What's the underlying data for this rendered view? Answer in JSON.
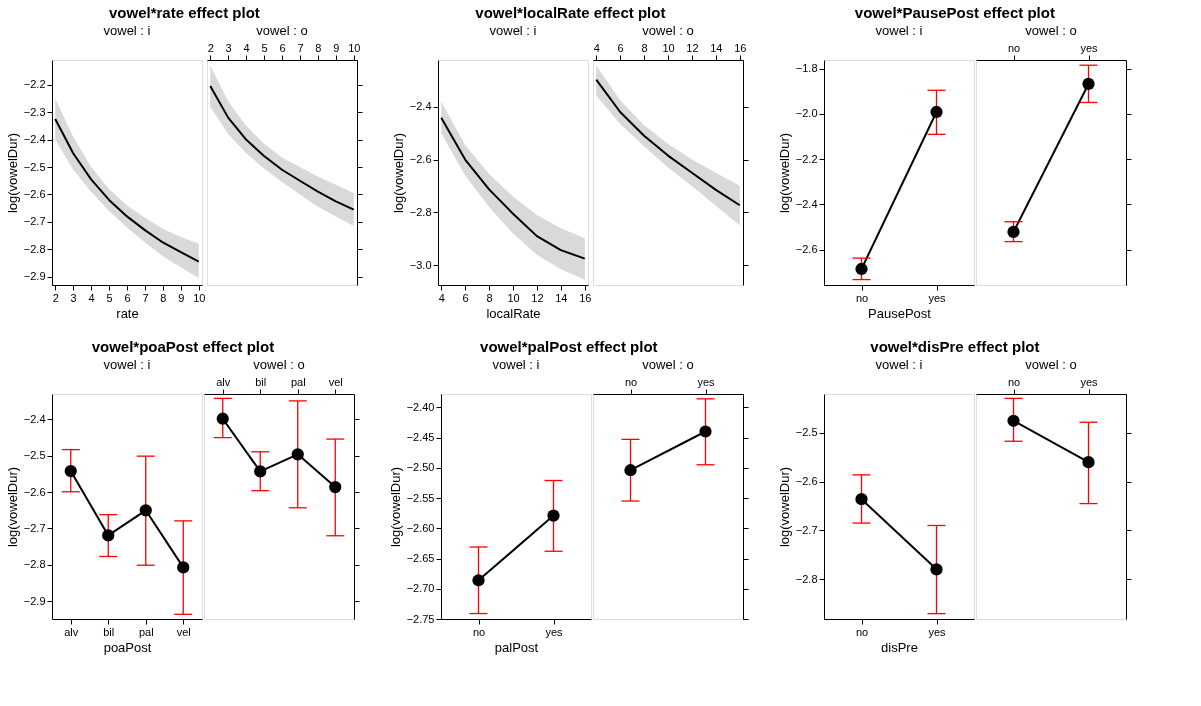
{
  "chart_data": [
    {
      "type": "line",
      "title": "vowel*rate effect plot",
      "subtitle": "vowel : i",
      "xlabel": "rate",
      "ylabel": "log(vowelDur)",
      "x": [
        2,
        3,
        4,
        5,
        6,
        7,
        8,
        9,
        10
      ],
      "xlim": [
        1.82,
        10.18
      ],
      "xticks": [
        2,
        3,
        4,
        5,
        6,
        7,
        8,
        9,
        10
      ],
      "ylim": [
        -2.93,
        -2.11
      ],
      "yticks": [
        -2.9,
        -2.8,
        -2.7,
        -2.6,
        -2.5,
        -2.4,
        -2.3,
        -2.2
      ],
      "grid": false,
      "series": [
        {
          "color": "#000000",
          "values": [
            -2.325,
            -2.45,
            -2.545,
            -2.62,
            -2.68,
            -2.73,
            -2.775,
            -2.81,
            -2.845
          ],
          "lower": [
            -2.4,
            -2.51,
            -2.59,
            -2.66,
            -2.72,
            -2.775,
            -2.825,
            -2.865,
            -2.905
          ],
          "upper": [
            -2.25,
            -2.39,
            -2.5,
            -2.58,
            -2.64,
            -2.685,
            -2.725,
            -2.755,
            -2.78
          ]
        }
      ]
    },
    {
      "type": "line",
      "subtitle": "vowel : o",
      "x": [
        2,
        3,
        4,
        5,
        6,
        7,
        8,
        9,
        10
      ],
      "xlim": [
        1.82,
        10.18
      ],
      "xticks": [
        2,
        3,
        4,
        5,
        6,
        7,
        8,
        9,
        10
      ],
      "ylim": [
        -2.93,
        -2.11
      ],
      "yticks": [
        -2.9,
        -2.8,
        -2.7,
        -2.6,
        -2.5,
        -2.4,
        -2.3,
        -2.2
      ],
      "tick_labels": "x",
      "grid": false,
      "series": [
        {
          "color": "#000000",
          "values": [
            -2.205,
            -2.32,
            -2.4,
            -2.46,
            -2.51,
            -2.55,
            -2.59,
            -2.625,
            -2.655
          ],
          "lower": [
            -2.28,
            -2.38,
            -2.45,
            -2.505,
            -2.555,
            -2.6,
            -2.645,
            -2.68,
            -2.715
          ],
          "upper": [
            -2.13,
            -2.26,
            -2.35,
            -2.415,
            -2.465,
            -2.5,
            -2.535,
            -2.565,
            -2.595
          ]
        }
      ]
    },
    {
      "type": "line",
      "title": "vowel*localRate effect plot",
      "subtitle": "vowel : i",
      "xlabel": "localRate",
      "ylabel": "log(vowelDur)",
      "x": [
        4,
        6,
        8,
        10,
        12,
        14,
        16
      ],
      "xlim": [
        3.73,
        16.27
      ],
      "xticks": [
        4,
        6,
        8,
        10,
        12,
        14,
        16
      ],
      "ylim": [
        -3.075,
        -2.223
      ],
      "yticks": [
        {
          "value": -3.0,
          "label": "−3.0"
        },
        {
          "value": -2.8,
          "label": "−2.8"
        },
        {
          "value": -2.6,
          "label": "−2.6"
        },
        {
          "value": -2.4,
          "label": "−2.4"
        }
      ],
      "grid": false,
      "series": [
        {
          "color": "#000000",
          "values": [
            -2.442,
            -2.6,
            -2.713,
            -2.805,
            -2.89,
            -2.943,
            -2.975
          ],
          "lower": [
            -2.5,
            -2.66,
            -2.78,
            -2.88,
            -2.96,
            -3.015,
            -3.055
          ],
          "upper": [
            -2.38,
            -2.545,
            -2.655,
            -2.74,
            -2.81,
            -2.86,
            -2.898
          ]
        }
      ]
    },
    {
      "type": "line",
      "subtitle": "vowel : o",
      "x": [
        4,
        6,
        8,
        10,
        12,
        14,
        16
      ],
      "xlim": [
        3.73,
        16.27
      ],
      "xticks": [
        4,
        6,
        8,
        10,
        12,
        14,
        16
      ],
      "ylim": [
        -3.075,
        -2.223
      ],
      "yticks": [
        -3.0,
        -2.8,
        -2.6,
        -2.4
      ],
      "tick_labels": "x",
      "grid": false,
      "series": [
        {
          "color": "#000000",
          "values": [
            -2.297,
            -2.42,
            -2.51,
            -2.585,
            -2.65,
            -2.715,
            -2.773
          ],
          "lower": [
            -2.357,
            -2.465,
            -2.55,
            -2.63,
            -2.7,
            -2.775,
            -2.85
          ],
          "upper": [
            -2.243,
            -2.375,
            -2.47,
            -2.54,
            -2.6,
            -2.65,
            -2.699
          ]
        }
      ]
    },
    {
      "type": "line",
      "title": "vowel*PausePost effect plot",
      "subtitle": "vowel : i",
      "xlabel": "PausePost",
      "ylabel": "log(vowelDur)",
      "categories": [
        "no",
        "yes"
      ],
      "ylim": [
        -2.757,
        -1.761
      ],
      "yticks": [
        {
          "value": -2.6,
          "label": "−2.6"
        },
        {
          "value": -2.4,
          "label": "−2.4"
        },
        {
          "value": -2.2,
          "label": "−2.2"
        },
        {
          "value": -2.0,
          "label": "−2.0"
        },
        {
          "value": -1.8,
          "label": "−1.8"
        }
      ],
      "marker": "circle",
      "grid": false,
      "series": [
        {
          "color": "#000000",
          "values": [
            -2.686,
            -1.991
          ],
          "errors": [
            [
              -2.733,
              -2.638
            ],
            [
              -2.09,
              -1.895
            ]
          ]
        }
      ]
    },
    {
      "type": "line",
      "subtitle": "vowel : o",
      "categories": [
        "no",
        "yes"
      ],
      "ylim": [
        -2.757,
        -1.761
      ],
      "yticks": [
        -2.6,
        -2.4,
        -2.2,
        -2.0,
        -1.8
      ],
      "tick_labels": "x",
      "marker": "circle",
      "grid": false,
      "series": [
        {
          "color": "#000000",
          "values": [
            -2.522,
            -1.867
          ],
          "errors": [
            [
              -2.565,
              -2.477
            ],
            [
              -1.949,
              -1.784
            ]
          ]
        }
      ]
    },
    {
      "type": "line",
      "title": "vowel*poaPost effect plot",
      "subtitle": "vowel : i",
      "xlabel": "poaPost",
      "ylabel": "log(vowelDur)",
      "categories": [
        "alv",
        "bil",
        "pal",
        "vel"
      ],
      "ylim": [
        -2.949,
        -2.33
      ],
      "yticks": [
        -2.9,
        -2.8,
        -2.7,
        -2.6,
        -2.5,
        -2.4
      ],
      "marker": "circle",
      "grid": false,
      "series": [
        {
          "color": "#000000",
          "values": [
            -2.542,
            -2.719,
            -2.65,
            -2.807
          ],
          "errors": [
            [
              -2.599,
              -2.483
            ],
            [
              -2.777,
              -2.662
            ],
            [
              -2.801,
              -2.501
            ],
            [
              -2.936,
              -2.679
            ]
          ]
        }
      ]
    },
    {
      "type": "line",
      "subtitle": "vowel : o",
      "categories": [
        "alv",
        "bil",
        "pal",
        "vel"
      ],
      "ylim": [
        -2.949,
        -2.33
      ],
      "yticks": [
        -2.9,
        -2.8,
        -2.7,
        -2.6,
        -2.5,
        -2.4
      ],
      "tick_labels": "x",
      "marker": "circle",
      "grid": false,
      "series": [
        {
          "color": "#000000",
          "values": [
            -2.398,
            -2.543,
            -2.496,
            -2.586
          ],
          "errors": [
            [
              -2.45,
              -2.342
            ],
            [
              -2.596,
              -2.489
            ],
            [
              -2.643,
              -2.349
            ],
            [
              -2.72,
              -2.454
            ]
          ]
        }
      ]
    },
    {
      "type": "line",
      "title": "vowel*palPost effect plot",
      "subtitle": "vowel : i",
      "xlabel": "palPost",
      "ylabel": "log(vowelDur)",
      "categories": [
        "no",
        "yes"
      ],
      "ylim": [
        -2.75,
        -2.378
      ],
      "yticks": [
        {
          "value": -2.75,
          "label": "−2.75"
        },
        {
          "value": -2.7,
          "label": "−2.70"
        },
        {
          "value": -2.65,
          "label": "−2.65"
        },
        {
          "value": -2.6,
          "label": "−2.60"
        },
        {
          "value": -2.55,
          "label": "−2.55"
        },
        {
          "value": -2.5,
          "label": "−2.50"
        },
        {
          "value": -2.45,
          "label": "−2.45"
        },
        {
          "value": -2.4,
          "label": "−2.40"
        }
      ],
      "marker": "circle",
      "grid": false,
      "series": [
        {
          "color": "#000000",
          "values": [
            -2.686,
            -2.579
          ],
          "errors": [
            [
              -2.741,
              -2.631
            ],
            [
              -2.638,
              -2.521
            ]
          ]
        }
      ]
    },
    {
      "type": "line",
      "subtitle": "vowel : o",
      "categories": [
        "no",
        "yes"
      ],
      "ylim": [
        -2.75,
        -2.378
      ],
      "yticks": [
        -2.75,
        -2.7,
        -2.65,
        -2.6,
        -2.55,
        -2.5,
        -2.45,
        -2.4
      ],
      "tick_labels": "x",
      "marker": "circle",
      "grid": false,
      "series": [
        {
          "color": "#000000",
          "values": [
            -2.504,
            -2.44
          ],
          "errors": [
            [
              -2.555,
              -2.453
            ],
            [
              -2.495,
              -2.386
            ]
          ]
        }
      ]
    },
    {
      "type": "line",
      "title": "vowel*disPre effect plot",
      "subtitle": "vowel : i",
      "xlabel": "disPre",
      "ylabel": "log(vowelDur)",
      "categories": [
        "no",
        "yes"
      ],
      "ylim": [
        -2.882,
        -2.42
      ],
      "yticks": [
        -2.8,
        -2.7,
        -2.6,
        -2.5
      ],
      "marker": "circle",
      "grid": false,
      "series": [
        {
          "color": "#000000",
          "values": [
            -2.636,
            -2.78
          ],
          "errors": [
            [
              -2.685,
              -2.586
            ],
            [
              -2.871,
              -2.69
            ]
          ]
        }
      ]
    },
    {
      "type": "line",
      "subtitle": "vowel : o",
      "categories": [
        "no",
        "yes"
      ],
      "ylim": [
        -2.882,
        -2.42
      ],
      "yticks": [
        -2.8,
        -2.7,
        -2.6,
        -2.5
      ],
      "tick_labels": "x",
      "marker": "circle",
      "grid": false,
      "series": [
        {
          "color": "#000000",
          "values": [
            -2.475,
            -2.56
          ],
          "errors": [
            [
              -2.517,
              -2.429
            ],
            [
              -2.645,
              -2.478
            ]
          ]
        }
      ]
    }
  ]
}
